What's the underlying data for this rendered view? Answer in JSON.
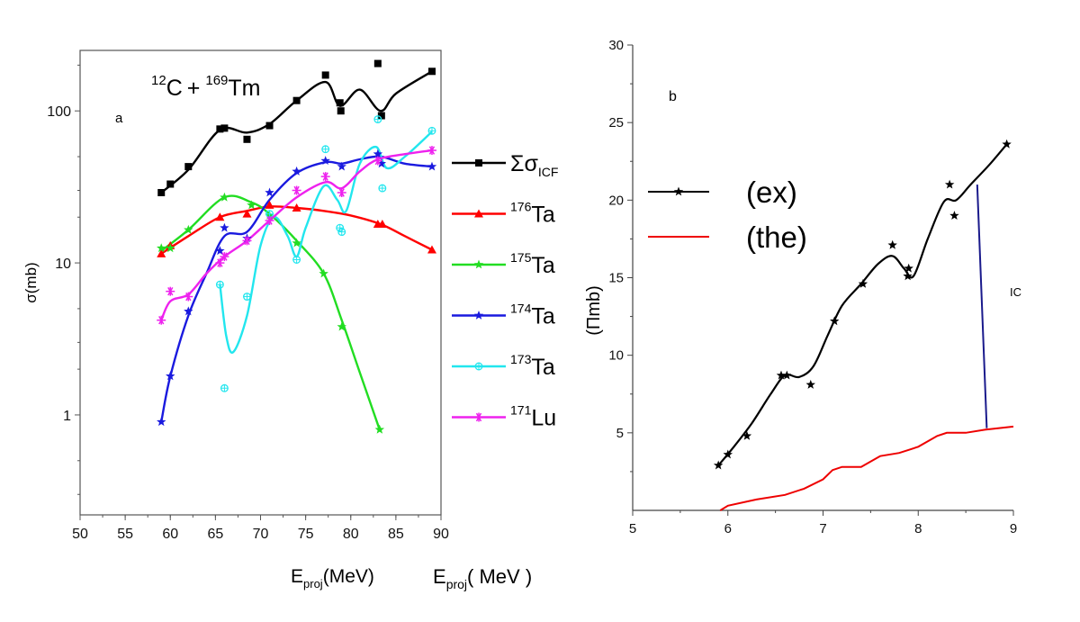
{
  "colors": {
    "sum_icf": "#000000",
    "ta176": "#ff0000",
    "ta175": "#22dd22",
    "ta174": "#1a1adf",
    "ta173": "#22e6ee",
    "lu171": "#ee22ee",
    "ic_line": "#1a1a8c",
    "the": "#ee0000"
  },
  "chart_data": [
    {
      "type": "scatter",
      "panel_label": "a",
      "annotation": {
        "mass_c": "12",
        "c": "C",
        "plus": "+",
        "mass_tm": "169",
        "tm": "Tm"
      },
      "xlabel": {
        "main": "E",
        "sub": "proj",
        "rest": "(MeV)"
      },
      "ylabel": "σ(mb)",
      "x_scale": "linear",
      "y_scale": "log",
      "xlim": [
        50,
        90
      ],
      "ylim": [
        0.22,
        250
      ],
      "x_ticks": [
        "50",
        "55",
        "60",
        "65",
        "70",
        "75",
        "80",
        "85",
        "90"
      ],
      "y_ticks": [
        "1",
        "10",
        "100"
      ],
      "legend_position": "right",
      "series": [
        {
          "key": "sum_icf",
          "marker": "square",
          "legend": {
            "mass": "",
            "symbol": "Σσ",
            "sub": "ICF"
          },
          "x": [
            59,
            60,
            62,
            65.5,
            66,
            68.5,
            71,
            74,
            77.2,
            78.8,
            78.9,
            83,
            83.4,
            89
          ],
          "y": [
            29,
            33,
            43,
            76,
            77,
            65,
            80,
            117,
            172,
            113,
            100,
            205,
            93,
            182
          ],
          "fit_x": [
            59,
            62,
            65.5,
            68.5,
            71,
            74,
            77.2,
            78.8,
            81,
            83.3,
            85,
            89
          ],
          "fit_y": [
            29,
            41,
            75,
            72,
            82,
            117,
            155,
            108,
            138,
            100,
            130,
            182
          ]
        },
        {
          "key": "ta176",
          "marker": "triangle",
          "legend": {
            "mass": "176",
            "symbol": "Ta",
            "sub": ""
          },
          "x": [
            59,
            60,
            65.5,
            68.5,
            71,
            74,
            83,
            83.5,
            89
          ],
          "y": [
            11.5,
            13,
            20,
            21,
            24,
            23,
            18,
            18,
            12.2
          ],
          "fit_x": [
            59,
            62,
            65.5,
            68.5,
            71,
            74,
            77,
            80,
            83.3,
            86,
            89
          ],
          "fit_y": [
            11.5,
            15,
            20,
            22,
            23.5,
            23,
            22,
            20.5,
            18,
            15,
            12.2
          ]
        },
        {
          "key": "ta175",
          "marker": "star",
          "legend": {
            "mass": "175",
            "symbol": "Ta",
            "sub": ""
          },
          "x": [
            59,
            60,
            62,
            66,
            69,
            71,
            74,
            77,
            79,
            83.2
          ],
          "y": [
            12.5,
            12.5,
            16.5,
            27,
            24,
            20.5,
            13.5,
            8.5,
            3.8,
            0.8
          ],
          "fit_x": [
            59,
            62,
            66,
            69,
            71,
            74,
            77,
            79,
            81,
            83.2
          ],
          "fit_y": [
            12,
            16.5,
            27,
            25,
            21,
            14,
            8.5,
            4.2,
            1.9,
            0.8
          ]
        },
        {
          "key": "ta174",
          "marker": "star",
          "legend": {
            "mass": "174",
            "symbol": "Ta",
            "sub": ""
          },
          "x": [
            59,
            60,
            62,
            65.5,
            66,
            68.5,
            71,
            74,
            77.2,
            79,
            83,
            83.4,
            89
          ],
          "y": [
            0.9,
            1.8,
            4.8,
            12,
            17,
            14.5,
            29,
            40,
            47,
            43,
            52,
            45,
            43
          ],
          "fit_x": [
            59,
            60,
            62,
            64,
            66,
            68.5,
            71,
            74,
            77.2,
            79,
            81,
            83.3,
            86,
            89
          ],
          "fit_y": [
            0.9,
            1.8,
            4.5,
            8.5,
            15,
            16,
            26,
            39,
            46,
            45,
            48,
            50,
            45,
            43
          ]
        },
        {
          "key": "ta173",
          "marker": "circle",
          "legend": {
            "mass": "173",
            "symbol": "Ta",
            "sub": ""
          },
          "x": [
            65.5,
            66,
            68.5,
            71,
            74,
            77.2,
            78.8,
            79,
            83,
            83.5,
            89
          ],
          "y": [
            7.2,
            1.5,
            6,
            21,
            10.5,
            56,
            17,
            16,
            88,
            31,
            74
          ],
          "fit_x": [
            65.5,
            66.2,
            67,
            68.5,
            70,
            71.5,
            73,
            74,
            75,
            77,
            78.5,
            79.5,
            81,
            82.8,
            84,
            86,
            89
          ],
          "fit_y": [
            7.2,
            3.3,
            2.6,
            4.5,
            13,
            20,
            15,
            11,
            17,
            32,
            26,
            22,
            45,
            58,
            42,
            50,
            73
          ]
        },
        {
          "key": "lu171",
          "marker": "asterisk",
          "legend": {
            "mass": "171",
            "symbol": "Lu",
            "sub": ""
          },
          "x": [
            59,
            60,
            62,
            65.5,
            66,
            68.5,
            71,
            74,
            77.2,
            79,
            83,
            89
          ],
          "y": [
            4.2,
            6.5,
            6,
            10,
            11,
            14,
            19,
            30,
            37,
            29,
            47,
            55
          ],
          "fit_x": [
            59,
            60,
            62,
            64,
            66,
            68.5,
            71,
            74,
            77.2,
            79,
            81,
            83,
            86,
            89
          ],
          "fit_y": [
            4.2,
            5.6,
            6.2,
            8.5,
            11,
            14,
            19,
            27,
            34,
            31,
            40,
            48,
            52,
            55
          ]
        }
      ]
    },
    {
      "type": "line",
      "panel_label": "b",
      "ylabel": "(Πmb)",
      "xlabel": {
        "main": "E",
        "sub": "proj",
        "rest": "( MeV )"
      },
      "xlim": [
        5,
        9
      ],
      "ylim": [
        0,
        30
      ],
      "x_ticks": [
        "5",
        "6",
        "7",
        "8",
        "9"
      ],
      "y_ticks": [
        "5",
        "10",
        "15",
        "20",
        "25",
        "30"
      ],
      "legend_position": "left",
      "annotation": "IC",
      "ic_line": {
        "x": [
          8.62,
          8.72
        ],
        "y": [
          21,
          5.3
        ]
      },
      "series": [
        {
          "key": "ex",
          "name": "(ex)",
          "marker": "star",
          "color": "#000000",
          "x": [
            5.9,
            6.0,
            6.2,
            6.56,
            6.62,
            6.87,
            7.12,
            7.42,
            7.73,
            7.89,
            7.9,
            8.33,
            8.38,
            8.93
          ],
          "y": [
            2.9,
            3.6,
            4.8,
            8.7,
            8.7,
            8.1,
            12.2,
            14.6,
            17.1,
            15.1,
            15.6,
            21.0,
            19.0,
            23.6
          ],
          "fit_x": [
            5.9,
            6.05,
            6.25,
            6.45,
            6.6,
            6.75,
            6.9,
            7.05,
            7.2,
            7.4,
            7.58,
            7.73,
            7.85,
            7.95,
            8.1,
            8.27,
            8.4,
            8.55,
            8.75,
            8.93
          ],
          "fit_y": [
            2.9,
            4.0,
            5.6,
            7.5,
            8.7,
            8.6,
            9.3,
            11.3,
            13.2,
            14.6,
            15.9,
            16.4,
            15.6,
            15.1,
            17.5,
            19.9,
            20.0,
            21.0,
            22.3,
            23.6
          ]
        },
        {
          "key": "the",
          "name": "(the)",
          "marker": "none",
          "color": "#ee0000",
          "x": [
            5.92,
            6.0,
            6.3,
            6.6,
            6.8,
            7.0,
            7.1,
            7.2,
            7.4,
            7.6,
            7.8,
            7.9,
            8.0,
            8.2,
            8.3,
            8.5,
            8.7,
            9.0
          ],
          "y": [
            0.0,
            0.3,
            0.7,
            1.0,
            1.4,
            2.0,
            2.6,
            2.8,
            2.8,
            3.5,
            3.7,
            3.9,
            4.1,
            4.8,
            5.0,
            5.0,
            5.2,
            5.4
          ]
        }
      ]
    }
  ]
}
